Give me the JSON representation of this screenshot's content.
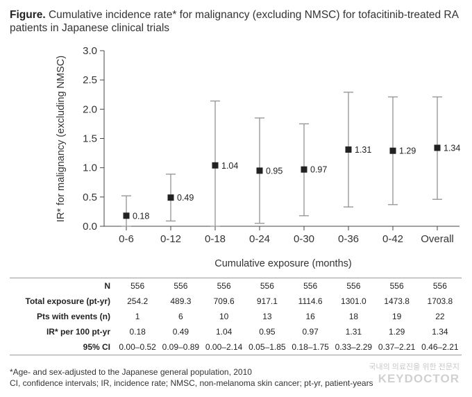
{
  "title": {
    "prefix": "Figure.",
    "text": "Cumulative incidence rate* for malignancy (excluding NMSC) for tofacitinib-treated RA patients in Japanese clinical trials"
  },
  "chart_data": {
    "type": "scatter",
    "subtype": "point-with-error-bars",
    "categories": [
      "0-6",
      "0-12",
      "0-18",
      "0-24",
      "0-30",
      "0-36",
      "0-42",
      "Overall"
    ],
    "values": [
      0.18,
      0.49,
      1.04,
      0.95,
      0.97,
      1.31,
      1.29,
      1.34
    ],
    "value_labels": [
      "0.18",
      "0.49",
      "1.04",
      "0.95",
      "0.97",
      "1.31",
      "1.29",
      "1.34"
    ],
    "ci_lower": [
      0.0,
      0.09,
      0.0,
      0.05,
      0.18,
      0.33,
      0.37,
      0.46
    ],
    "ci_upper": [
      0.52,
      0.89,
      2.14,
      1.85,
      1.75,
      2.29,
      2.21,
      2.21
    ],
    "ylabel": "IR* for malignancy (excluding NMSC)",
    "xlabel": "Cumulative exposure (months)",
    "ylim": [
      0,
      3.0
    ],
    "yticks": [
      "0.0",
      "0.5",
      "1.0",
      "1.5",
      "2.0",
      "2.5",
      "3.0"
    ],
    "grid": false,
    "marker_color": "#222222",
    "errorbar_color": "#999999"
  },
  "table": {
    "rows": [
      {
        "label": "N",
        "cells": [
          "556",
          "556",
          "556",
          "556",
          "556",
          "556",
          "556",
          "556"
        ]
      },
      {
        "label": "Total exposure (pt-yr)",
        "cells": [
          "254.2",
          "489.3",
          "709.6",
          "917.1",
          "1114.6",
          "1301.0",
          "1473.8",
          "1703.8"
        ]
      },
      {
        "label": "Pts with events (n)",
        "cells": [
          "1",
          "6",
          "10",
          "13",
          "16",
          "18",
          "19",
          "22"
        ]
      },
      {
        "label": "IR* per 100 pt-yr",
        "cells": [
          "0.18",
          "0.49",
          "1.04",
          "0.95",
          "0.97",
          "1.31",
          "1.29",
          "1.34"
        ]
      },
      {
        "label": "95% CI",
        "cells": [
          "0.00–0.52",
          "0.09–0.89",
          "0.00–2.14",
          "0.05–1.85",
          "0.18–1.75",
          "0.33–2.29",
          "0.37–2.21",
          "0.46–2.21"
        ]
      }
    ]
  },
  "footnotes": [
    "*Age- and sex-adjusted to the Japanese general population, 2010",
    "CI, confidence intervals; IR, incidence rate; NMSC, non-melanoma skin cancer; pt-yr, patient-years"
  ],
  "watermark": {
    "small": "국내의 의료진을 위한 전문지",
    "big": "KEYDOCTOR"
  }
}
